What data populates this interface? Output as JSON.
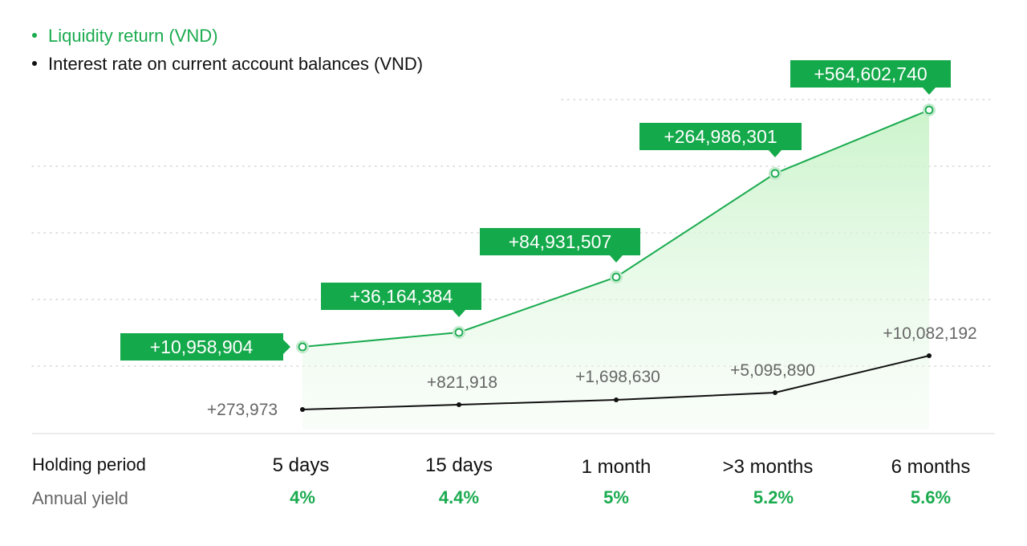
{
  "colors": {
    "green": "#1aab4f",
    "green_label_bg": "#14a94a",
    "black": "#111111",
    "grid": "#d6d6d6",
    "muted": "#666666"
  },
  "legend": [
    {
      "label": "Liquidity return (VND)",
      "color": "#1aab4f"
    },
    {
      "label": "Interest rate on current account balances (VND)",
      "color": "#111111"
    }
  ],
  "table": {
    "period_label": "Holding period",
    "yield_label": "Annual yield",
    "periods": [
      "5 days",
      "15 days",
      "1 month",
      ">3 months",
      "6 months"
    ],
    "yields": [
      "4%",
      "4.4%",
      "5%",
      "5.2%",
      "5.6%"
    ]
  },
  "chart_data": {
    "type": "line",
    "categories": [
      "5 days",
      "15 days",
      "1 month",
      ">3 months",
      "6 months"
    ],
    "series": [
      {
        "name": "Liquidity return (VND)",
        "values": [
          10958904,
          36164384,
          84931507,
          264986301,
          564602740
        ],
        "labels": [
          "+10,958,904",
          "+36,164,384",
          "+84,931,507",
          "+264,986,301",
          "+564,602,740"
        ]
      },
      {
        "name": "Interest rate on current account balances (VND)",
        "values": [
          273973,
          821918,
          1698630,
          5095890,
          10082192
        ],
        "labels": [
          "+273,973",
          "+821,918",
          "+1,698,630",
          "+5,095,890",
          "+10,082,192"
        ]
      }
    ],
    "area_fill": true,
    "grid": "dotted horizontal",
    "legend_position": "top-left"
  }
}
